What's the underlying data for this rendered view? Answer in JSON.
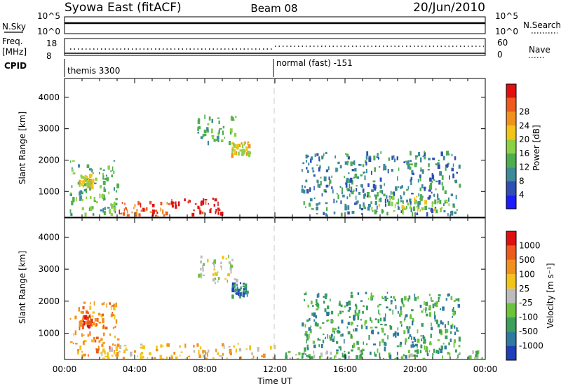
{
  "header": {
    "station": "Syowa East (fitACF)",
    "beam": "Beam 08",
    "date": "20/Jun/2010"
  },
  "status_panels": {
    "nsky_label": "N.Sky",
    "nsky_ticks": [
      "10^5",
      "10^0"
    ],
    "nsearch_label": "N.Search",
    "nsearch_ticks": [
      "10^5",
      "10^0"
    ],
    "freq_label_1": "Freq.",
    "freq_label_2": "[MHz]",
    "freq_ticks": [
      "18",
      "8"
    ],
    "nave_label": "Nave",
    "nave_ticks": [
      "60",
      "0"
    ],
    "cpid_label": "CPID",
    "cpid_modes": [
      {
        "name": "themis 3300",
        "start_hour": 0
      },
      {
        "name": "normal (fast) -151",
        "start_hour": 12
      }
    ]
  },
  "chart_data": [
    {
      "type": "heatmap",
      "panel": "power",
      "xlabel": "",
      "ylabel": "Slant Range [km]",
      "xlim_hours": [
        0,
        24
      ],
      "ylim_km": [
        180,
        4600
      ],
      "y_ticks": [
        1000,
        2000,
        3000,
        4000
      ],
      "x_ticks": [
        "00:00",
        "04:00",
        "08:00",
        "12:00",
        "16:00",
        "20:00",
        "00:00"
      ],
      "colorbar": {
        "label": "Power [dB]",
        "levels": [
          "4",
          "8",
          "12",
          "16",
          "20",
          "24",
          "28"
        ],
        "colors": [
          "#1c1cff",
          "#2f4fb4",
          "#3c8a9a",
          "#4eae4e",
          "#8cd044",
          "#f2c418",
          "#f2901e",
          "#ee5a1e",
          "#e01010"
        ]
      },
      "regions": [
        {
          "x": [
            0.3,
            3.0
          ],
          "y": [
            300,
            2000
          ],
          "level": 3
        },
        {
          "x": [
            0.8,
            1.6
          ],
          "y": [
            1200,
            1600
          ],
          "level": 5
        },
        {
          "x": [
            3.0,
            6.0
          ],
          "y": [
            200,
            700
          ],
          "level": 7
        },
        {
          "x": [
            6.0,
            9.0
          ],
          "y": [
            300,
            800
          ],
          "level": 8
        },
        {
          "x": [
            7.5,
            9.8
          ],
          "y": [
            2600,
            3500
          ],
          "level": 3
        },
        {
          "x": [
            9.5,
            10.5
          ],
          "y": [
            2200,
            2600
          ],
          "level": 5
        },
        {
          "x": [
            13.5,
            22.5
          ],
          "y": [
            300,
            2300
          ],
          "level": 2
        },
        {
          "x": [
            17.0,
            22.0
          ],
          "y": [
            400,
            900
          ],
          "level": 4
        }
      ]
    },
    {
      "type": "heatmap",
      "panel": "velocity",
      "xlabel": "Time UT",
      "ylabel": "Slant Range [km]",
      "xlim_hours": [
        0,
        24
      ],
      "ylim_km": [
        180,
        4600
      ],
      "y_ticks": [
        1000,
        2000,
        3000,
        4000
      ],
      "x_ticks": [
        "00:00",
        "04:00",
        "08:00",
        "12:00",
        "16:00",
        "20:00",
        "00:00"
      ],
      "colorbar": {
        "label": "Velocity [m s⁻¹]",
        "levels": [
          "1000",
          "500",
          "100",
          "25",
          "-25",
          "-100",
          "-500",
          "-1000"
        ],
        "colors": [
          "#1f3fb8",
          "#2e7aa0",
          "#3aa05a",
          "#6cc43c",
          "#bcbcbc",
          "#f2c418",
          "#f2901e",
          "#ee5a1e",
          "#e01010"
        ]
      },
      "regions": [
        {
          "x": [
            0.3,
            3.0
          ],
          "y": [
            300,
            2000
          ],
          "level": 6
        },
        {
          "x": [
            0.8,
            1.6
          ],
          "y": [
            1200,
            1600
          ],
          "level": 7
        },
        {
          "x": [
            2.0,
            12.0
          ],
          "y": [
            200,
            700
          ],
          "level": 5
        },
        {
          "x": [
            7.5,
            9.8
          ],
          "y": [
            2600,
            3500
          ],
          "level": 4
        },
        {
          "x": [
            9.5,
            10.5
          ],
          "y": [
            2200,
            2600
          ],
          "level": 1
        },
        {
          "x": [
            12.0,
            24.0
          ],
          "y": [
            200,
            500
          ],
          "level": 3
        },
        {
          "x": [
            13.5,
            22.5
          ],
          "y": [
            300,
            2300
          ],
          "level": 2
        }
      ]
    }
  ]
}
